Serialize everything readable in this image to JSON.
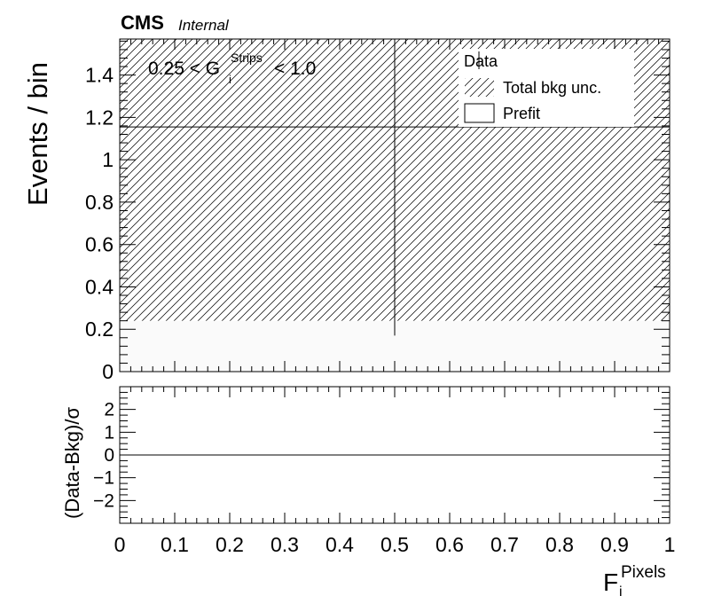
{
  "header": {
    "experiment": "CMS",
    "status": "Internal"
  },
  "cut_label": {
    "prefix": "0.25 < G",
    "sub": "i",
    "sup": "Strips",
    "suffix": "< 1.0"
  },
  "legend": {
    "data": "Data",
    "bkg_unc": "Total bkg unc.",
    "prefit": "Prefit"
  },
  "chart_data": [
    {
      "type": "bar",
      "panel": "main",
      "ylabel": "Events / bin",
      "xlim": [
        0,
        1
      ],
      "ylim": [
        0,
        1.57
      ],
      "y_ticks": [
        0,
        0.2,
        0.4,
        0.6,
        0.8,
        1,
        1.2,
        1.4
      ],
      "y_tick_labels": [
        "0",
        "0.2",
        "0.4",
        "0.6",
        "0.8",
        "1",
        "1.2",
        "1.4"
      ],
      "bins": [
        [
          0,
          1
        ]
      ],
      "series": [
        {
          "name": "Prefit",
          "values": [
            0.24
          ],
          "style": "open"
        },
        {
          "name": "Total bkg unc.",
          "values_low": [
            0.24
          ],
          "values_high": [
            1.57
          ],
          "style": "hatched"
        },
        {
          "name": "Data",
          "x": [
            0.5
          ],
          "y": [
            1.155
          ],
          "xerr": [
            0.5
          ],
          "y_low": [
            0.17
          ],
          "y_high": [
            1.57
          ],
          "style": "marker-errorbar"
        }
      ],
      "legend_position": "top-right",
      "grid": false
    },
    {
      "type": "line",
      "panel": "ratio",
      "ylabel": "(Data-Bkg)/σ",
      "ylim": [
        -3,
        3
      ],
      "y_ticks": [
        -2,
        -1,
        0,
        1,
        2
      ],
      "y_tick_labels": [
        "−2",
        "−1",
        "0",
        "1",
        "2"
      ],
      "xlim": [
        0,
        1
      ],
      "x_ticks": [
        0,
        0.1,
        0.2,
        0.3,
        0.4,
        0.5,
        0.6,
        0.7,
        0.8,
        0.9,
        1
      ],
      "x_tick_labels": [
        "0",
        "0.1",
        "0.2",
        "0.3",
        "0.4",
        "0.5",
        "0.6",
        "0.7",
        "0.8",
        "0.9",
        "1"
      ],
      "xlabel": {
        "base": "F",
        "sub": "i",
        "sup": "Pixels"
      },
      "series": [
        {
          "x": [
            0,
            1
          ],
          "values": [
            0,
            0
          ],
          "style": "reference-line"
        }
      ],
      "grid": false
    }
  ]
}
